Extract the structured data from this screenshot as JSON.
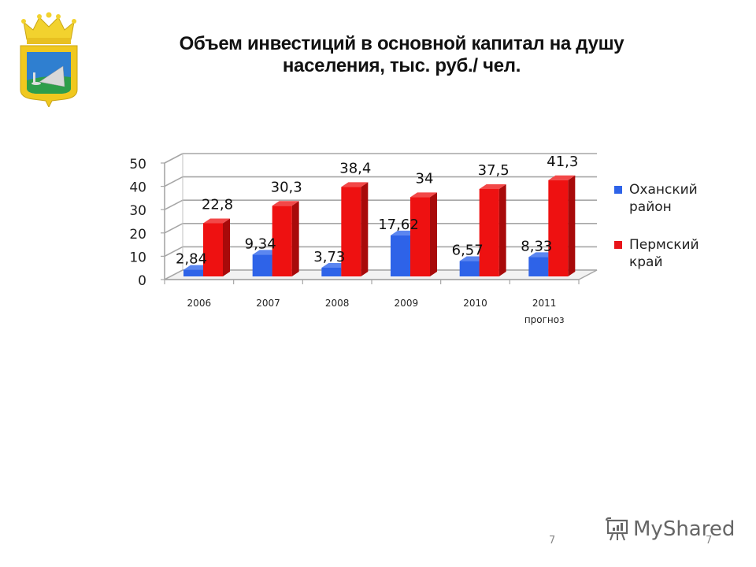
{
  "slide": {
    "title_line1": "Объем инвестиций в основной капитал на душу",
    "title_line2": "населения,  тыс. руб./ чел.",
    "page_number": "7",
    "watermark": "MyShared",
    "watermark_number": "7",
    "emblem": "coat-of-arms"
  },
  "legend": {
    "items": [
      {
        "label_line1": "Оханский",
        "label_line2": "район",
        "color": "#2E63E8"
      },
      {
        "label_line1": "Пермский",
        "label_line2": "край",
        "color": "#E8141A"
      }
    ]
  },
  "chart_data": {
    "type": "bar",
    "style": "3d-clustered-column",
    "title": "Объем инвестиций в основной капитал на душу населения, тыс. руб./ чел.",
    "xlabel": "",
    "ylabel": "",
    "categories": [
      "2006",
      "2007",
      "2008",
      "2009",
      "2010",
      "2011 прогноз"
    ],
    "category_labels": [
      {
        "line1": "2006",
        "line2": ""
      },
      {
        "line1": "2007",
        "line2": ""
      },
      {
        "line1": "2008",
        "line2": ""
      },
      {
        "line1": "2009",
        "line2": ""
      },
      {
        "line1": "2010",
        "line2": ""
      },
      {
        "line1": "2011",
        "line2": "прогноз"
      }
    ],
    "series": [
      {
        "name": "Оханский район",
        "color": "#2E63E8",
        "values": [
          2.84,
          9.34,
          3.73,
          17.62,
          6.57,
          8.33
        ],
        "labels": [
          "2,84",
          "9,34",
          "3,73",
          "17,62",
          "6,57",
          "8,33"
        ]
      },
      {
        "name": "Пермский край",
        "color": "#E8141A",
        "values": [
          22.8,
          30.3,
          38.4,
          34,
          37.5,
          41.3
        ],
        "labels": [
          "22,8",
          "30,3",
          "38,4",
          "34",
          "37,5",
          "41,3"
        ]
      }
    ],
    "ylim": [
      0,
      50
    ],
    "yticks": [
      "0",
      "10",
      "20",
      "30",
      "40",
      "50"
    ],
    "grid": true,
    "legend_position": "right"
  }
}
